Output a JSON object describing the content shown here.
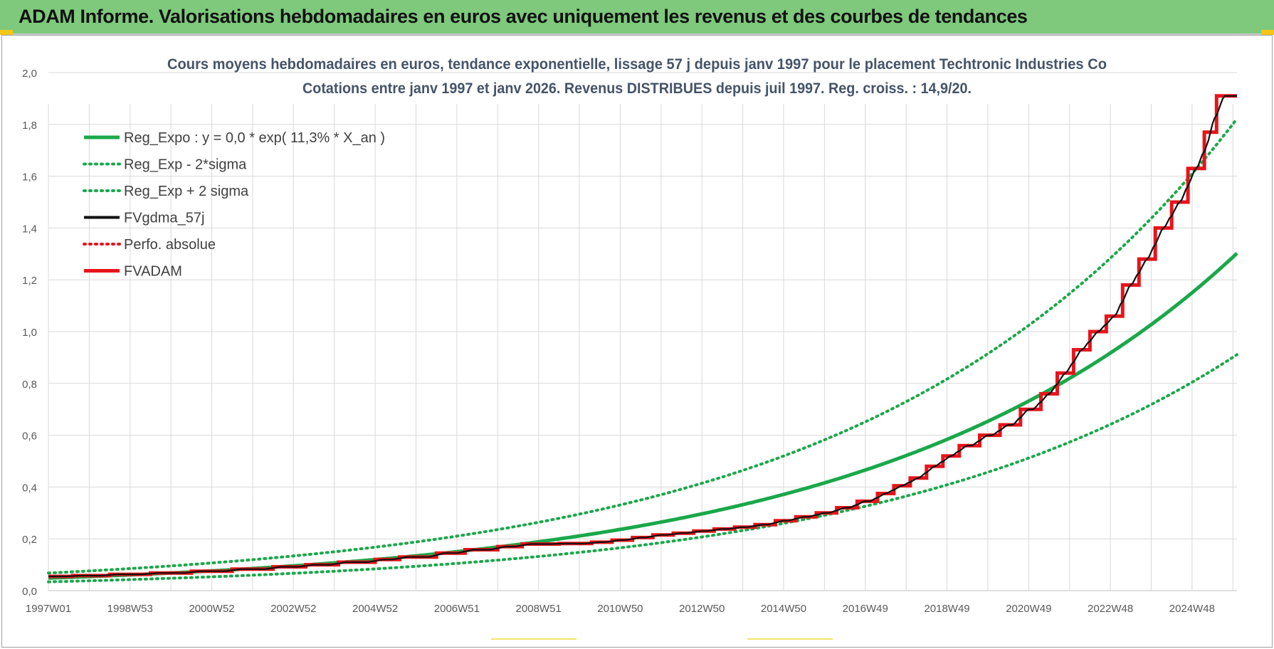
{
  "header": {
    "title": "ADAM Informe. Valorisations hebdomadaires en euros avec uniquement les revenus et des courbes de tendances"
  },
  "colors": {
    "header_bg": "#7ec97c",
    "green": "#1aa84a",
    "red": "#e8141b",
    "black": "#111111",
    "accent": "#f5c518"
  },
  "chart_data": {
    "type": "line",
    "title": "Cours moyens hebdomadaires en euros, tendance exponentielle, lissage 57 j depuis janv 1997 pour le placement Techtronic Industries Co",
    "subtitle": "Cotations entre janv 1997 et janv 2026. Revenus DISTRIBUES depuis juil 1997. Reg. croiss. : 14,9/20.",
    "xlabel": "",
    "ylabel": "",
    "xlim": [
      1997.0,
      2026.1
    ],
    "ylim": [
      0,
      2.0
    ],
    "grid": true,
    "legend_position": "top-left",
    "x_tick_positions": [
      1997.0,
      1999.0,
      2001.0,
      2003.0,
      2005.0,
      2007.0,
      2009.0,
      2011.0,
      2013.0,
      2015.0,
      2017.0,
      2019.0,
      2021.0,
      2023.0,
      2025.0
    ],
    "x_tick_labels": [
      "1997W01",
      "1998W53",
      "2000W52",
      "2002W52",
      "2004W52",
      "2006W51",
      "2008W51",
      "2010W50",
      "2012W50",
      "2014W50",
      "2016W49",
      "2018W49",
      "2020W49",
      "2022W48",
      "2024W48"
    ],
    "y_ticks": [
      0,
      0.2,
      0.4,
      0.6,
      0.8,
      1.0,
      1.2,
      1.4,
      1.6,
      1.8,
      2.0
    ],
    "y_tick_labels": [
      "0,0",
      "0,2",
      "0,4",
      "0,6",
      "0,8",
      "1,0",
      "1,2",
      "1,4",
      "1,6",
      "1,8",
      "2,0"
    ],
    "legend": [
      {
        "label": "Reg_Expo : y = 0,0 * exp( 11,3% *  X_an )",
        "style": "solid",
        "color": "#1aa84a"
      },
      {
        "label": "Reg_Exp - 2*sigma",
        "style": "dotted",
        "color": "#1aa84a"
      },
      {
        "label": "Reg_Exp + 2 sigma",
        "style": "dotted",
        "color": "#1aa84a"
      },
      {
        "label": "FVgdma_57j",
        "style": "solid",
        "color": "#111111"
      },
      {
        "label": "Perfo. absolue",
        "style": "dotted",
        "color": "#e8141b"
      },
      {
        "label": "FVADAM",
        "style": "solid-thick",
        "color": "#e8141b"
      }
    ],
    "series": [
      {
        "name": "Reg_Expo",
        "type": "exponential",
        "a": 0.0486,
        "growth_rate": 0.113,
        "x0": 1997.0
      },
      {
        "name": "Reg_Exp - 2*sigma",
        "type": "exponential",
        "a": 0.034,
        "growth_rate": 0.113,
        "x0": 1997.0
      },
      {
        "name": "Reg_Exp + 2 sigma",
        "type": "exponential",
        "a": 0.068,
        "growth_rate": 0.113,
        "x0": 1997.0
      },
      {
        "name": "FVADAM",
        "type": "step",
        "x": [
          1997.0,
          1997.6,
          1998.5,
          1999.5,
          2000.5,
          2001.5,
          2002.5,
          2003.3,
          2004.1,
          2005.0,
          2005.6,
          2006.5,
          2007.2,
          2008.0,
          2008.6,
          2009.5,
          2010.3,
          2010.8,
          2011.3,
          2011.8,
          2012.3,
          2012.8,
          2013.3,
          2013.8,
          2014.3,
          2014.8,
          2015.3,
          2015.8,
          2016.3,
          2016.8,
          2017.3,
          2017.7,
          2018.1,
          2018.5,
          2018.9,
          2019.3,
          2019.8,
          2020.3,
          2020.8,
          2021.3,
          2021.7,
          2022.1,
          2022.5,
          2022.9,
          2023.3,
          2023.7,
          2024.1,
          2024.5,
          2024.9,
          2025.3,
          2025.6,
          2026.1
        ],
        "y": [
          0.055,
          0.058,
          0.063,
          0.068,
          0.075,
          0.083,
          0.092,
          0.1,
          0.11,
          0.12,
          0.13,
          0.145,
          0.158,
          0.17,
          0.18,
          0.182,
          0.187,
          0.195,
          0.205,
          0.215,
          0.222,
          0.23,
          0.238,
          0.245,
          0.255,
          0.27,
          0.285,
          0.3,
          0.32,
          0.345,
          0.375,
          0.405,
          0.435,
          0.48,
          0.52,
          0.56,
          0.6,
          0.64,
          0.7,
          0.76,
          0.84,
          0.93,
          1.0,
          1.06,
          1.18,
          1.28,
          1.4,
          1.5,
          1.63,
          1.77,
          1.91,
          1.91
        ]
      },
      {
        "name": "FVgdma_57j",
        "type": "line",
        "derived_from": "FVADAM",
        "smoothing_years": 0.16
      }
    ]
  }
}
